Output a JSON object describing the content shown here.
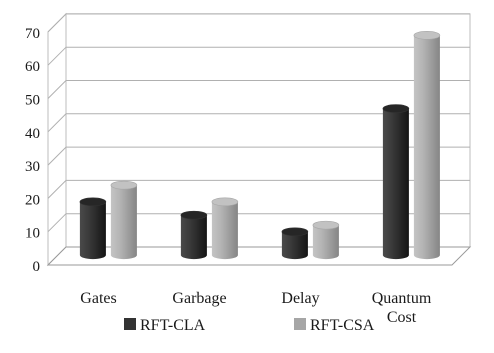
{
  "chart_data": {
    "type": "bar",
    "style": "3d-cylinder",
    "categories": [
      [
        "Gates"
      ],
      [
        "Garbage"
      ],
      [
        "Delay"
      ],
      [
        "Quantum",
        "Cost"
      ]
    ],
    "series": [
      {
        "name": "RFT-CLA",
        "color": "#333333",
        "values": [
          16,
          12,
          7,
          44
        ]
      },
      {
        "name": "RFT-CSA",
        "color": "#a6a6a6",
        "values": [
          21,
          16,
          9,
          66
        ]
      }
    ],
    "yticks": [
      "0",
      "10",
      "20",
      "30",
      "40",
      "50",
      "60",
      "70"
    ],
    "ylim": [
      0,
      70
    ],
    "grid": true,
    "legend_position": "bottom-center"
  }
}
